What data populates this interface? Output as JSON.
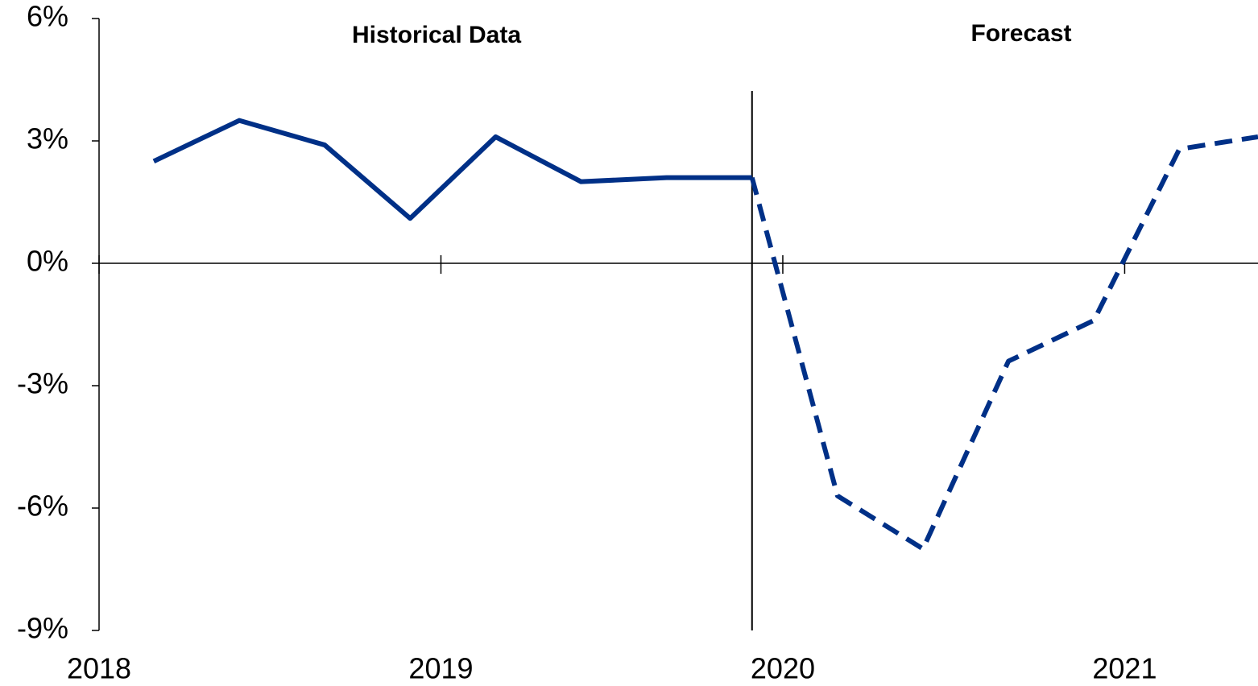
{
  "chart_data": {
    "type": "line",
    "annotations": [
      "Historical Data",
      "Forecast"
    ],
    "xlim": [
      2018,
      2021.39
    ],
    "xticks": [
      2018,
      2019,
      2020,
      2021
    ],
    "ylim": [
      -9,
      6
    ],
    "yticks": [
      {
        "value": -9,
        "label": "-9%"
      },
      {
        "value": -6,
        "label": "-6%"
      },
      {
        "value": -3,
        "label": "-3%"
      },
      {
        "value": 0,
        "label": "0%"
      },
      {
        "value": 3,
        "label": "3%"
      },
      {
        "value": 6,
        "label": "6%"
      }
    ],
    "series": [
      {
        "color": "#003087",
        "style": "solid",
        "x": [
          2018.16,
          2018.41,
          2018.66,
          2018.91,
          2019.16,
          2019.41,
          2019.66,
          2019.91
        ],
        "values": [
          2.5,
          3.5,
          2.9,
          1.1,
          3.1,
          2.0,
          2.1,
          2.1
        ]
      },
      {
        "color": "#003087",
        "style": "dashed",
        "x": [
          2019.91,
          2020.16,
          2020.41,
          2020.66,
          2020.91,
          2021.16,
          2021.39
        ],
        "values": [
          2.1,
          -5.7,
          -7.0,
          -2.4,
          -1.4,
          2.8,
          3.1
        ]
      }
    ]
  }
}
